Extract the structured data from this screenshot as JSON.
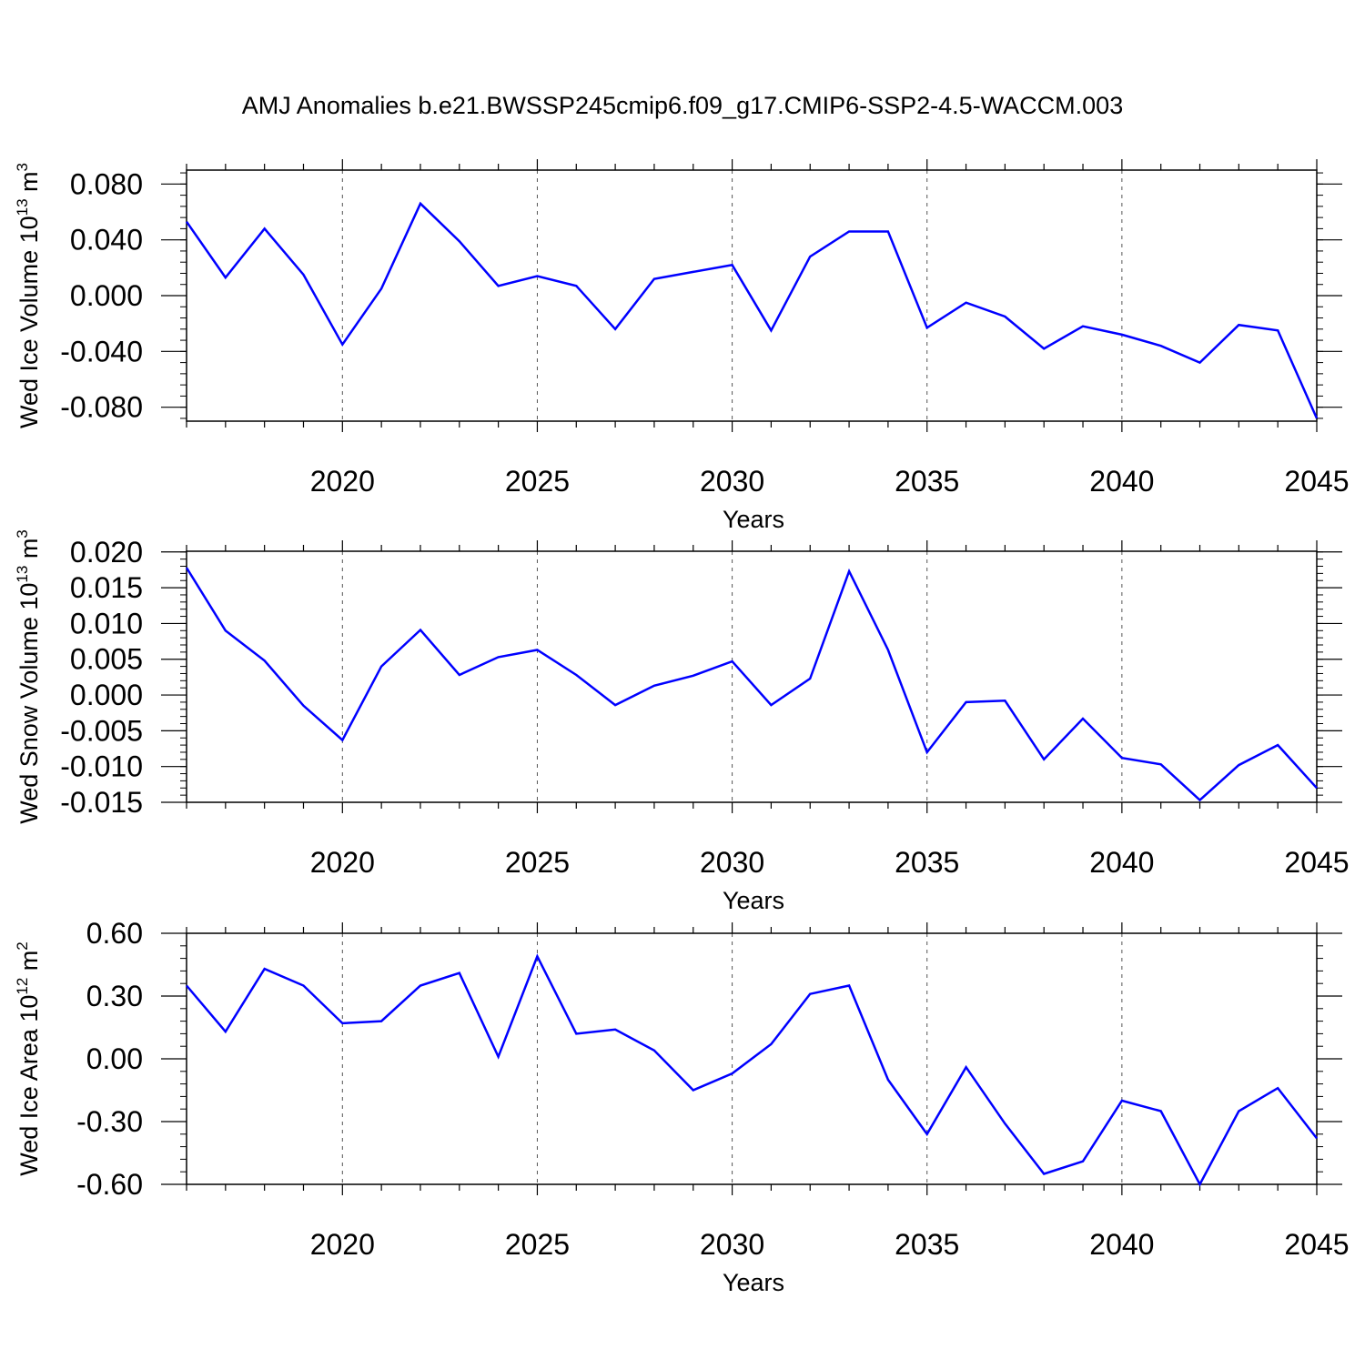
{
  "title": "AMJ Anomalies b.e21.BWSSP245cmip6.f09_g17.CMIP6-SSP2-4.5-WACCM.003",
  "colors": {
    "line": "#0000ff",
    "axis": "#000000",
    "grid": "#555555",
    "background": "#ffffff"
  },
  "chart_data": [
    {
      "type": "line",
      "ylabel": "Wed Ice Volume 10",
      "ylabel_exp": "13",
      "ylabel_unit": " m",
      "ylabel_unit_exp": "3",
      "xlabel": "Years",
      "xlim": [
        2016,
        2045
      ],
      "ylim": [
        -0.09,
        0.09
      ],
      "yticks": [
        -0.08,
        -0.04,
        0.0,
        0.04,
        0.08
      ],
      "ytick_labels": [
        "-0.080",
        "-0.040",
        "0.000",
        "0.040",
        "0.080"
      ],
      "xticks": [
        2020,
        2025,
        2030,
        2035,
        2040,
        2045
      ],
      "xtick_labels": [
        "2020",
        "2025",
        "2030",
        "2035",
        "2040",
        "2045"
      ],
      "grid_x": [
        2020,
        2025,
        2030,
        2035,
        2040
      ],
      "x": [
        2016,
        2017,
        2018,
        2019,
        2020,
        2021,
        2022,
        2023,
        2024,
        2025,
        2026,
        2027,
        2028,
        2029,
        2030,
        2031,
        2032,
        2033,
        2034,
        2035,
        2036,
        2037,
        2038,
        2039,
        2040,
        2041,
        2042,
        2043,
        2044,
        2045
      ],
      "series": [
        {
          "values": [
            0.053,
            0.013,
            0.048,
            0.015,
            -0.035,
            0.005,
            0.066,
            0.039,
            0.007,
            0.014,
            0.007,
            -0.024,
            0.012,
            0.017,
            0.022,
            -0.025,
            0.028,
            0.046,
            0.046,
            -0.023,
            -0.005,
            -0.015,
            -0.038,
            -0.022,
            -0.028,
            -0.036,
            -0.048,
            -0.021,
            -0.025,
            -0.088
          ]
        }
      ]
    },
    {
      "type": "line",
      "ylabel": "Wed Snow Volume 10",
      "ylabel_exp": "13",
      "ylabel_unit": " m",
      "ylabel_unit_exp": "3",
      "xlabel": "Years",
      "xlim": [
        2016,
        2045
      ],
      "ylim": [
        -0.015,
        0.0201
      ],
      "yticks": [
        -0.015,
        -0.01,
        -0.005,
        0.0,
        0.005,
        0.01,
        0.015,
        0.02
      ],
      "ytick_labels": [
        "-0.015",
        "-0.010",
        "-0.005",
        "0.000",
        "0.005",
        "0.010",
        "0.015",
        "0.020"
      ],
      "xticks": [
        2020,
        2025,
        2030,
        2035,
        2040,
        2045
      ],
      "xtick_labels": [
        "2020",
        "2025",
        "2030",
        "2035",
        "2040",
        "2045"
      ],
      "grid_x": [
        2020,
        2025,
        2030,
        2035,
        2040
      ],
      "x": [
        2016,
        2017,
        2018,
        2019,
        2020,
        2021,
        2022,
        2023,
        2024,
        2025,
        2026,
        2027,
        2028,
        2029,
        2030,
        2031,
        2032,
        2033,
        2034,
        2035,
        2036,
        2037,
        2038,
        2039,
        2040,
        2041,
        2042,
        2043,
        2044,
        2045
      ],
      "series": [
        {
          "values": [
            0.0178,
            0.009,
            0.0048,
            -0.0015,
            -0.0063,
            0.004,
            0.0091,
            0.0028,
            0.0053,
            0.0063,
            0.0028,
            -0.0014,
            0.0013,
            0.0027,
            0.0047,
            -0.0014,
            0.0023,
            0.0173,
            0.0063,
            -0.008,
            -0.001,
            -0.0008,
            -0.009,
            -0.0033,
            -0.0088,
            -0.0097,
            -0.0147,
            -0.0098,
            -0.007,
            -0.013
          ]
        }
      ]
    },
    {
      "type": "line",
      "ylabel": "Wed Ice Area 10",
      "ylabel_exp": "12",
      "ylabel_unit": " m",
      "ylabel_unit_exp": "2",
      "xlabel": "Years",
      "xlim": [
        2016,
        2045
      ],
      "ylim": [
        -0.6,
        0.6
      ],
      "yticks": [
        -0.6,
        -0.3,
        0.0,
        0.3,
        0.6
      ],
      "ytick_labels": [
        "-0.60",
        "-0.30",
        "0.00",
        "0.30",
        "0.60"
      ],
      "xticks": [
        2020,
        2025,
        2030,
        2035,
        2040,
        2045
      ],
      "xtick_labels": [
        "2020",
        "2025",
        "2030",
        "2035",
        "2040",
        "2045"
      ],
      "grid_x": [
        2020,
        2025,
        2030,
        2035,
        2040
      ],
      "x": [
        2016,
        2017,
        2018,
        2019,
        2020,
        2021,
        2022,
        2023,
        2024,
        2025,
        2026,
        2027,
        2028,
        2029,
        2030,
        2031,
        2032,
        2033,
        2034,
        2035,
        2036,
        2037,
        2038,
        2039,
        2040,
        2041,
        2042,
        2043,
        2044,
        2045
      ],
      "series": [
        {
          "values": [
            0.35,
            0.13,
            0.43,
            0.35,
            0.17,
            0.18,
            0.35,
            0.41,
            0.01,
            0.49,
            0.12,
            0.14,
            0.04,
            -0.15,
            -0.07,
            0.07,
            0.31,
            0.35,
            -0.1,
            -0.36,
            -0.04,
            -0.31,
            -0.55,
            -0.49,
            -0.2,
            -0.25,
            -0.6,
            -0.25,
            -0.14,
            -0.38
          ]
        }
      ]
    }
  ]
}
